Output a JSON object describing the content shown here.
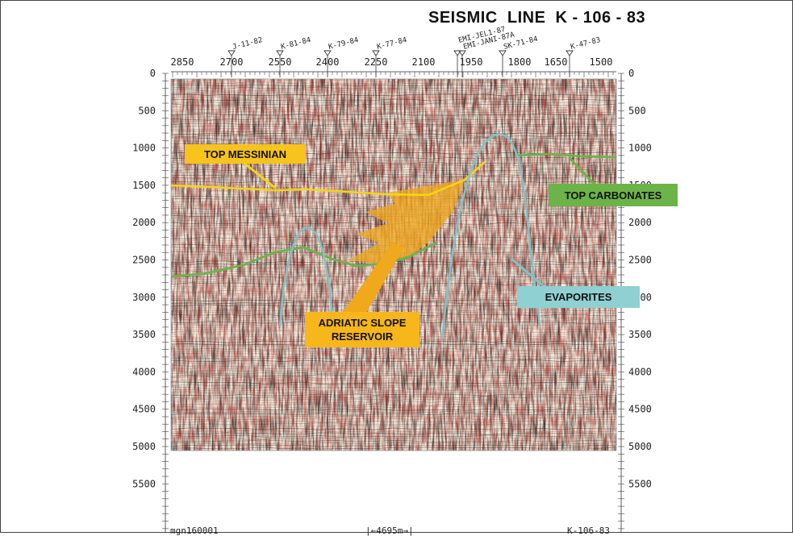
{
  "title": "SEISMIC  LINE  K - 106 - 83",
  "top_axis": {
    "tick_labels": [
      "2850",
      "2700",
      "2550",
      "2400",
      "2250",
      "2100",
      "1950",
      "1800",
      "1650",
      "1500"
    ]
  },
  "depth_axis": {
    "tick_labels": [
      "0",
      "500",
      "1000",
      "1500",
      "2000",
      "2500",
      "3000",
      "3500",
      "4000",
      "4500",
      "5000",
      "5500"
    ]
  },
  "wells": [
    {
      "name": "J-11-82"
    },
    {
      "name": "K-81-84"
    },
    {
      "name": "K-79-84"
    },
    {
      "name": "K-77-84"
    },
    {
      "name": "EMI-JEL1-87"
    },
    {
      "name": "EMI-JANI-87A"
    },
    {
      "name": "SK-71-84"
    },
    {
      "name": "K-47-83"
    }
  ],
  "annotations": {
    "top_messinian": "TOP MESSINIAN",
    "top_carbonates": "TOP CARBONATES",
    "evaporites": "EVAPORITES",
    "reservoir": "ADRIATIC SLOPE\nRESERVOIR"
  },
  "footer": {
    "left": "mgn160001",
    "scale": "|←4695m→|",
    "right": "K-106-83"
  },
  "colors": {
    "messinian": "#f5d60f",
    "reservoir": "#f0a81c",
    "carbonates": "#6cb348",
    "evaporites": "#7ec3c6",
    "seismic_dark": "#2a1a18",
    "seismic_red": "#b32a22",
    "seismic_light": "#efe9dc"
  },
  "icons": {
    "well_marker": "triangle-down-icon"
  }
}
